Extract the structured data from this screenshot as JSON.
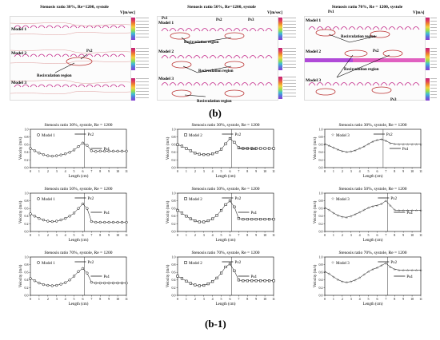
{
  "figure": {
    "caption_top": "(b)",
    "caption_bottom": "(b-1)"
  },
  "flow_panels": [
    {
      "title": "Stenosis ratio 30%, Re=1200, systole",
      "velocity_unit": "V[m/sec]",
      "models": [
        "Model 1",
        "Model 2",
        "Model 3"
      ],
      "annotations": [
        "Ps2",
        "Recirculation region"
      ]
    },
    {
      "title": "Stenosis ratio 50%, Re=1200, systole",
      "velocity_unit": "V[m/sec]",
      "models": [
        "Model 1",
        "Model 2",
        "Model 3"
      ],
      "annotations": [
        "Ps1",
        "Ps2",
        "Ps3",
        "Recirculation region",
        "Recirculation region",
        "Recirculation region"
      ]
    },
    {
      "title": "Stenosis ratio 70%, Re = 1200, systole",
      "velocity_unit": "V[m/s]",
      "models": [
        "Model 1",
        "Model 2",
        "Model 3"
      ],
      "annotations": [
        "Ps1",
        "Ps2",
        "Ps3",
        "Recirculation region",
        "Recirculation region"
      ]
    }
  ],
  "chart_data": [
    {
      "type": "scatter",
      "title": "Stenosis ratio 30%, systole, Re = 1200",
      "xlabel": "Length (cm)",
      "ylabel": "Velocity (m/s)",
      "xlim": [
        0,
        11
      ],
      "ylim": [
        0,
        1
      ],
      "legend": "Model 1",
      "marker": "circle",
      "callouts": [
        "Px2",
        "Ps4"
      ],
      "x": [
        0,
        0.5,
        1,
        1.5,
        2,
        2.5,
        3,
        3.5,
        4,
        4.5,
        5,
        5.5,
        6,
        6.5,
        7,
        7.5,
        8,
        8.5,
        9,
        9.5,
        10,
        10.5,
        11
      ],
      "y": [
        0.5,
        0.44,
        0.38,
        0.34,
        0.31,
        0.3,
        0.31,
        0.33,
        0.36,
        0.4,
        0.46,
        0.55,
        0.64,
        0.58,
        0.44,
        0.42,
        0.43,
        0.43,
        0.43,
        0.43,
        0.43,
        0.43,
        0.43
      ]
    },
    {
      "type": "scatter",
      "title": "Stenosis ratio 30%, systole, Re = 1200",
      "xlabel": "Length (cm)",
      "ylabel": "Velocity (m/s)",
      "xlim": [
        0,
        11
      ],
      "ylim": [
        0,
        1
      ],
      "legend": "Model 2",
      "marker": "square",
      "callouts": [
        "Px2",
        "Ps4"
      ],
      "x": [
        0,
        0.5,
        1,
        1.5,
        2,
        2.5,
        3,
        3.5,
        4,
        4.5,
        5,
        5.5,
        6,
        6.5,
        7,
        7.5,
        8,
        8.5,
        9,
        9.5,
        10,
        10.5,
        11
      ],
      "y": [
        0.6,
        0.56,
        0.5,
        0.44,
        0.38,
        0.35,
        0.34,
        0.34,
        0.36,
        0.4,
        0.48,
        0.62,
        0.76,
        0.66,
        0.52,
        0.5,
        0.5,
        0.5,
        0.5,
        0.5,
        0.5,
        0.5,
        0.5
      ]
    },
    {
      "type": "scatter",
      "title": "Stenosis ratio 30%, systole, Re = 1200",
      "xlabel": "Length (cm)",
      "ylabel": "Velocity (m/s)",
      "xlim": [
        0,
        11
      ],
      "ylim": [
        0,
        1
      ],
      "legend": "Model 3",
      "marker": "star",
      "callouts": [
        "Px2",
        "Ps4"
      ],
      "x": [
        0,
        0.5,
        1,
        1.5,
        2,
        2.5,
        3,
        3.5,
        4,
        4.5,
        5,
        5.5,
        6,
        6.5,
        7,
        7.5,
        8,
        8.5,
        9,
        9.5,
        10,
        10.5,
        11
      ],
      "y": [
        0.62,
        0.57,
        0.52,
        0.47,
        0.43,
        0.41,
        0.42,
        0.45,
        0.5,
        0.55,
        0.62,
        0.68,
        0.72,
        0.74,
        0.7,
        0.64,
        0.62,
        0.61,
        0.61,
        0.61,
        0.61,
        0.61,
        0.61
      ]
    },
    {
      "type": "scatter",
      "title": "Stenosis ratio 50%, systole, Re = 1200",
      "xlabel": "Length (cm)",
      "ylabel": "Velocity (m/s)",
      "xlim": [
        0,
        11
      ],
      "ylim": [
        0,
        1
      ],
      "legend": "Model 1",
      "marker": "circle",
      "callouts": [
        "Px2",
        "Ps4"
      ],
      "x": [
        0,
        0.5,
        1,
        1.5,
        2,
        2.5,
        3,
        3.5,
        4,
        4.5,
        5,
        5.5,
        6,
        6.5,
        7,
        7.5,
        8,
        8.5,
        9,
        9.5,
        10,
        10.5,
        11
      ],
      "y": [
        0.46,
        0.4,
        0.34,
        0.3,
        0.27,
        0.26,
        0.27,
        0.3,
        0.34,
        0.4,
        0.48,
        0.6,
        0.72,
        0.6,
        0.26,
        0.24,
        0.24,
        0.24,
        0.24,
        0.24,
        0.24,
        0.24,
        0.24
      ]
    },
    {
      "type": "scatter",
      "title": "Stenosis ratio 50%, systole, Re = 1200",
      "xlabel": "Length (cm)",
      "ylabel": "Velocity (m/s)",
      "xlim": [
        0,
        11
      ],
      "ylim": [
        0,
        1
      ],
      "legend": "Model 2",
      "marker": "square",
      "callouts": [
        "Px2",
        "Ps4"
      ],
      "x": [
        0,
        0.5,
        1,
        1.5,
        2,
        2.5,
        3,
        3.5,
        4,
        4.5,
        5,
        5.5,
        6,
        6.5,
        7,
        7.5,
        8,
        8.5,
        9,
        9.5,
        10,
        10.5,
        11
      ],
      "y": [
        0.55,
        0.48,
        0.4,
        0.33,
        0.28,
        0.25,
        0.25,
        0.28,
        0.33,
        0.42,
        0.55,
        0.7,
        0.8,
        0.64,
        0.34,
        0.32,
        0.32,
        0.32,
        0.32,
        0.32,
        0.32,
        0.32,
        0.32
      ]
    },
    {
      "type": "scatter",
      "title": "Stenosis ratio 50%, systole, Re = 1200",
      "xlabel": "Length (cm)",
      "ylabel": "Velocity (m/s)",
      "xlim": [
        0,
        11
      ],
      "ylim": [
        0,
        1
      ],
      "legend": "Model 3",
      "marker": "star",
      "callouts": [
        "Px2",
        "Ps4"
      ],
      "x": [
        0,
        0.5,
        1,
        1.5,
        2,
        2.5,
        3,
        3.5,
        4,
        4.5,
        5,
        5.5,
        6,
        6.5,
        7,
        7.5,
        8,
        8.5,
        9,
        9.5,
        10,
        10.5,
        11
      ],
      "y": [
        0.62,
        0.56,
        0.48,
        0.42,
        0.38,
        0.37,
        0.4,
        0.45,
        0.5,
        0.56,
        0.62,
        0.66,
        0.68,
        0.72,
        0.8,
        0.68,
        0.56,
        0.55,
        0.55,
        0.55,
        0.55,
        0.55,
        0.55
      ]
    },
    {
      "type": "scatter",
      "title": "Stenosis ratio 70%, systole, Re = 1200",
      "xlabel": "Length (cm)",
      "ylabel": "Velocity (m/s)",
      "xlim": [
        0,
        11
      ],
      "ylim": [
        0,
        1
      ],
      "legend": "Model 1",
      "marker": "circle",
      "callouts": [
        "Px2",
        "Ps4"
      ],
      "x": [
        0,
        0.5,
        1,
        1.5,
        2,
        2.5,
        3,
        3.5,
        4,
        4.5,
        5,
        5.5,
        6,
        6.5,
        7,
        7.5,
        8,
        8.5,
        9,
        9.5,
        10,
        10.5,
        11
      ],
      "y": [
        0.44,
        0.38,
        0.32,
        0.28,
        0.26,
        0.25,
        0.26,
        0.29,
        0.33,
        0.4,
        0.5,
        0.62,
        0.7,
        0.58,
        0.34,
        0.32,
        0.32,
        0.32,
        0.32,
        0.32,
        0.32,
        0.32,
        0.32
      ]
    },
    {
      "type": "scatter",
      "title": "Stenosis ratio 70%, systole, Re = 1200",
      "xlabel": "Length (cm)",
      "ylabel": "Velocity (m/s)",
      "xlim": [
        0,
        11
      ],
      "ylim": [
        0,
        1
      ],
      "legend": "Model 2",
      "marker": "square",
      "callouts": [
        "Px2",
        "Ps4"
      ],
      "x": [
        0,
        0.5,
        1,
        1.5,
        2,
        2.5,
        3,
        3.5,
        4,
        4.5,
        5,
        5.5,
        6,
        6.5,
        7,
        7.5,
        8,
        8.5,
        9,
        9.5,
        10,
        10.5,
        11
      ],
      "y": [
        0.5,
        0.44,
        0.37,
        0.31,
        0.27,
        0.25,
        0.26,
        0.3,
        0.36,
        0.45,
        0.58,
        0.74,
        0.82,
        0.64,
        0.4,
        0.38,
        0.38,
        0.38,
        0.38,
        0.38,
        0.38,
        0.38,
        0.38
      ]
    },
    {
      "type": "scatter",
      "title": "Stenosis ratio 70%, systole, Re = 1200",
      "xlabel": "Length (cm)",
      "ylabel": "Velocity (m/s)",
      "xlim": [
        0,
        11
      ],
      "ylim": [
        0,
        1
      ],
      "legend": "Model 3",
      "marker": "star",
      "callouts": [
        "Px2",
        "Ps4"
      ],
      "x": [
        0,
        0.5,
        1,
        1.5,
        2,
        2.5,
        3,
        3.5,
        4,
        4.5,
        5,
        5.5,
        6,
        6.5,
        7,
        7.5,
        8,
        8.5,
        9,
        9.5,
        10,
        10.5,
        11
      ],
      "y": [
        0.62,
        0.56,
        0.48,
        0.41,
        0.36,
        0.34,
        0.36,
        0.4,
        0.46,
        0.54,
        0.62,
        0.68,
        0.72,
        0.78,
        0.84,
        0.74,
        0.68,
        0.66,
        0.66,
        0.66,
        0.66,
        0.66,
        0.66
      ]
    }
  ]
}
